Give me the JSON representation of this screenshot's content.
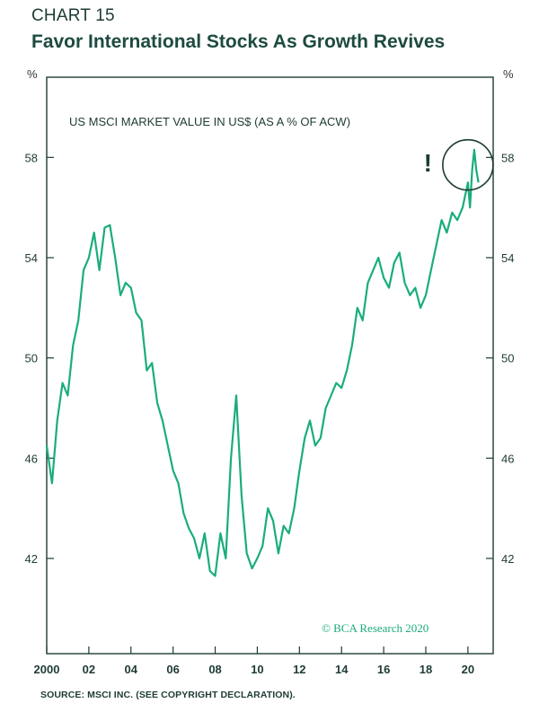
{
  "header": {
    "chart_number": "CHART 15",
    "title": "Favor International Stocks As Growth Revives"
  },
  "axis_units": {
    "left": "%",
    "right": "%"
  },
  "source": "SOURCE: MSCI INC. (SEE COPYRIGHT DECLARATION).",
  "colors": {
    "line": "#1aad7c",
    "annotation": "#1e3b35",
    "watermark": "#1aad7c"
  },
  "chart_data": {
    "type": "line",
    "title": "US MSCI MARKET VALUE IN US$ (AS A % OF ACW)",
    "xlabel": "",
    "ylabel": "%",
    "xlim": [
      2000,
      2021.2
    ],
    "ylim": [
      38.2,
      61.2
    ],
    "yticks": [
      42,
      46,
      50,
      54,
      58
    ],
    "xticks": [
      2000,
      2002,
      2004,
      2006,
      2008,
      2010,
      2012,
      2014,
      2016,
      2018,
      2020
    ],
    "xtick_labels": [
      "2000",
      "02",
      "04",
      "06",
      "08",
      "10",
      "12",
      "14",
      "16",
      "18",
      "20"
    ],
    "grid": false,
    "legend": "none",
    "watermark": "© BCA Research 2020",
    "annotations": [
      {
        "text": "!",
        "x": 2018.1,
        "y": 57.8
      },
      {
        "shape": "circle",
        "x": 2020.0,
        "y": 57.7
      }
    ],
    "series": [
      {
        "x": [
          2000.0,
          2000.25,
          2000.5,
          2000.75,
          2001.0,
          2001.25,
          2001.5,
          2001.75,
          2002.0,
          2002.25,
          2002.5,
          2002.75,
          2003.0,
          2003.25,
          2003.5,
          2003.75,
          2004.0,
          2004.25,
          2004.5,
          2004.75,
          2005.0,
          2005.25,
          2005.5,
          2005.75,
          2006.0,
          2006.25,
          2006.5,
          2006.75,
          2007.0,
          2007.25,
          2007.5,
          2007.75,
          2008.0,
          2008.25,
          2008.5,
          2008.75,
          2009.0,
          2009.25,
          2009.5,
          2009.75,
          2010.0,
          2010.25,
          2010.5,
          2010.75,
          2011.0,
          2011.25,
          2011.5,
          2011.75,
          2012.0,
          2012.25,
          2012.5,
          2012.75,
          2013.0,
          2013.25,
          2013.5,
          2013.75,
          2014.0,
          2014.25,
          2014.5,
          2014.75,
          2015.0,
          2015.25,
          2015.5,
          2015.75,
          2016.0,
          2016.25,
          2016.5,
          2016.75,
          2017.0,
          2017.25,
          2017.5,
          2017.75,
          2018.0,
          2018.25,
          2018.5,
          2018.75,
          2019.0,
          2019.25,
          2019.5,
          2019.75,
          2020.0,
          2020.1,
          2020.2,
          2020.3,
          2020.4,
          2020.5
        ],
        "values": [
          46.5,
          45.0,
          47.5,
          49.0,
          48.5,
          50.5,
          51.5,
          53.5,
          54.0,
          55.0,
          53.5,
          55.2,
          55.3,
          54.0,
          52.5,
          53.0,
          52.8,
          51.8,
          51.5,
          49.5,
          49.8,
          48.2,
          47.5,
          46.5,
          45.5,
          45.0,
          43.8,
          43.2,
          42.8,
          42.0,
          43.0,
          41.5,
          41.3,
          43.0,
          42.0,
          46.0,
          48.5,
          44.5,
          42.2,
          41.6,
          42.0,
          42.5,
          44.0,
          43.5,
          42.2,
          43.3,
          43.0,
          44.0,
          45.5,
          46.8,
          47.5,
          46.5,
          46.8,
          48.0,
          48.5,
          49.0,
          48.8,
          49.5,
          50.5,
          52.0,
          51.5,
          53.0,
          53.5,
          54.0,
          53.2,
          52.8,
          53.8,
          54.2,
          53.0,
          52.5,
          52.8,
          52.0,
          52.5,
          53.5,
          54.5,
          55.5,
          55.0,
          55.8,
          55.5,
          56.0,
          57.0,
          56.0,
          57.5,
          58.3,
          57.5,
          57.0
        ]
      }
    ]
  }
}
